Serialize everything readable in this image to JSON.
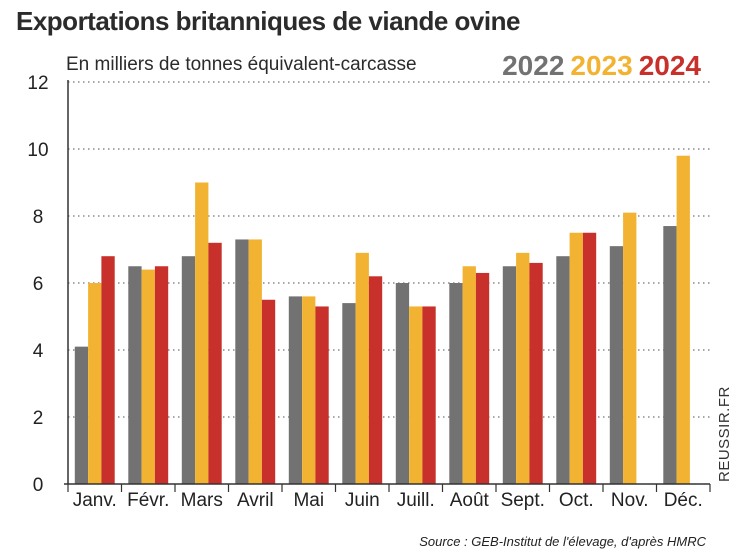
{
  "header": {
    "title": "Exportations britanniques de viande ovine",
    "subtitle": "En milliers de tonnes équivalent-carcasse"
  },
  "watermark": "REUSSIR.FR",
  "source": "Source : GEB-Institut de l'élevage, d'après HMRC",
  "chart_data": {
    "type": "bar",
    "title": "Exportations britanniques de viande ovine",
    "subtitle": "En milliers de tonnes équivalent-carcasse",
    "xlabel": "",
    "ylabel": "En milliers de tonnes équivalent-carcasse",
    "ylim": [
      0,
      12
    ],
    "yticks": [
      0,
      2,
      4,
      6,
      8,
      10,
      12
    ],
    "grid": "horizontal dotted",
    "legend_position": "top-right",
    "categories": [
      "Janv.",
      "Févr.",
      "Mars",
      "Avril",
      "Mai",
      "Juin",
      "Juill.",
      "Août",
      "Sept.",
      "Oct.",
      "Nov.",
      "Déc."
    ],
    "series": [
      {
        "name": "2022",
        "color": "#727272",
        "values": [
          4.1,
          6.5,
          6.8,
          7.3,
          5.6,
          5.4,
          6.0,
          6.0,
          6.5,
          6.8,
          7.1,
          7.7
        ]
      },
      {
        "name": "2023",
        "color": "#f2b333",
        "values": [
          6.0,
          6.4,
          9.0,
          7.3,
          5.6,
          6.9,
          5.3,
          6.5,
          6.9,
          7.5,
          8.1,
          9.8
        ]
      },
      {
        "name": "2024",
        "color": "#c8302b",
        "values": [
          6.8,
          6.5,
          7.2,
          5.5,
          5.3,
          6.2,
          5.3,
          6.3,
          6.6,
          7.5,
          null,
          null
        ]
      }
    ]
  }
}
